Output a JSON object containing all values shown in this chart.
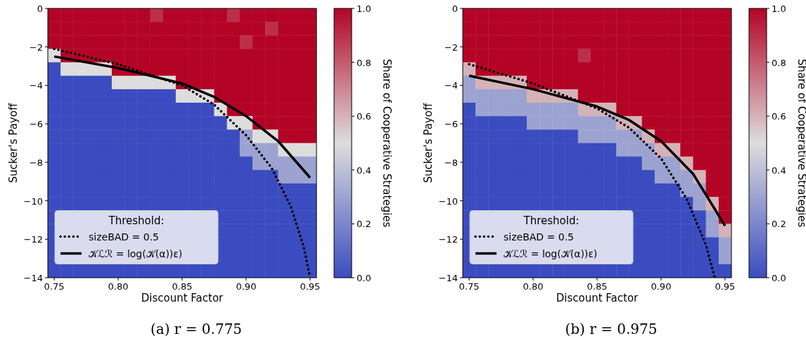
{
  "chart_data": [
    {
      "type": "heatmap",
      "title": "(a) r = 0.775",
      "xlabel": "Discount Factor",
      "ylabel": "Sucker's Payoff",
      "clabel": "Share of Cooperative Strategies",
      "legend_title": "Threshold:",
      "legend": "bottom left",
      "grid": false,
      "xlim": [
        0.745,
        0.955
      ],
      "ylim": [
        -14,
        0
      ],
      "xticks": [
        {
          "value": 0.75,
          "label": "0.75"
        },
        {
          "value": 0.8,
          "label": "0.80"
        },
        {
          "value": 0.85,
          "label": "0.85"
        },
        {
          "value": 0.9,
          "label": "0.90"
        },
        {
          "value": 0.95,
          "label": "0.95"
        }
      ],
      "yticks": [
        {
          "value": -14,
          "label": "−14"
        },
        {
          "value": -12,
          "label": "−12"
        },
        {
          "value": -10,
          "label": "−10"
        },
        {
          "value": -8,
          "label": "−8"
        },
        {
          "value": -6,
          "label": "−6"
        },
        {
          "value": -4,
          "label": "−4"
        },
        {
          "value": -2,
          "label": "−2"
        },
        0
      ],
      "clim": [
        0,
        1
      ],
      "cticks": [
        {
          "value": 0,
          "label": "0.0"
        },
        {
          "value": 0.2,
          "label": "0.2"
        },
        {
          "value": 0.4,
          "label": "0.4"
        },
        {
          "value": 0.6,
          "label": "0.6"
        },
        {
          "value": 0.8,
          "label": "0.8"
        },
        {
          "value": 1,
          "label": "1.0"
        }
      ],
      "cells": [
        [
          1,
          1,
          1,
          1,
          1,
          1,
          1,
          1,
          0.9,
          1,
          1,
          1,
          1,
          1,
          0.9,
          1,
          1,
          1,
          1,
          1,
          1
        ],
        [
          1,
          1,
          1,
          1,
          1,
          1,
          1,
          1,
          1,
          1,
          1,
          1,
          1,
          1,
          1,
          1,
          1,
          0.9,
          1,
          1,
          1
        ],
        [
          1,
          1,
          1,
          1,
          1,
          1,
          1,
          1,
          1,
          1,
          1,
          1,
          1,
          1,
          1,
          0.9,
          1,
          1,
          1,
          1,
          1
        ],
        [
          0.5,
          1,
          1,
          1,
          1,
          1,
          1,
          1,
          1,
          1,
          1,
          1,
          1,
          1,
          1,
          1,
          1,
          1,
          1,
          1,
          1
        ],
        [
          0,
          0.5,
          0.5,
          0.5,
          0.5,
          1,
          1,
          1,
          1,
          1,
          1,
          1,
          1,
          1,
          1,
          1,
          1,
          1,
          1,
          1,
          1
        ],
        [
          0,
          0,
          0,
          0,
          0,
          0.5,
          0.5,
          0.5,
          0.5,
          0.5,
          1,
          1,
          1,
          1,
          1,
          1,
          1,
          1,
          1,
          1,
          1
        ],
        [
          0,
          0,
          0,
          0,
          0,
          0,
          0,
          0,
          0,
          0,
          0.5,
          0.5,
          0.5,
          1,
          1,
          1,
          1,
          1,
          1,
          1,
          1
        ],
        [
          0,
          0,
          0,
          0,
          0,
          0,
          0,
          0,
          0,
          0,
          0,
          0,
          0,
          0.5,
          1,
          1,
          1,
          1,
          1,
          1,
          1
        ],
        [
          0,
          0,
          0,
          0,
          0,
          0,
          0,
          0,
          0,
          0,
          0,
          0,
          0,
          0,
          0.5,
          0.5,
          1,
          1,
          1,
          1,
          1
        ],
        [
          0,
          0,
          0,
          0,
          0,
          0,
          0,
          0,
          0,
          0,
          0,
          0,
          0,
          0,
          0,
          0.3,
          0.5,
          0.5,
          1,
          1,
          1
        ],
        [
          0,
          0,
          0,
          0,
          0,
          0,
          0,
          0,
          0,
          0,
          0,
          0,
          0,
          0,
          0,
          0.3,
          0.3,
          0.3,
          0.5,
          0.5,
          0.5
        ],
        [
          0,
          0,
          0,
          0,
          0,
          0,
          0,
          0,
          0,
          0,
          0,
          0,
          0,
          0,
          0,
          0,
          0.3,
          0.3,
          0.3,
          0.3,
          0.3
        ],
        [
          0,
          0,
          0,
          0,
          0,
          0,
          0,
          0,
          0,
          0,
          0,
          0,
          0,
          0,
          0,
          0,
          0,
          0,
          0.3,
          0.3,
          0.3
        ],
        [
          0,
          0,
          0,
          0,
          0,
          0,
          0,
          0,
          0,
          0,
          0,
          0,
          0,
          0,
          0,
          0,
          0,
          0,
          0,
          0,
          0
        ],
        [
          0,
          0,
          0,
          0,
          0,
          0,
          0,
          0,
          0,
          0,
          0,
          0,
          0,
          0,
          0,
          0,
          0,
          0,
          0,
          0,
          0
        ],
        [
          0,
          null,
          null,
          null,
          null,
          null,
          null,
          null,
          null,
          null,
          null,
          null,
          null,
          0,
          0,
          0,
          0,
          0,
          0,
          0,
          0
        ],
        [
          0,
          null,
          null,
          null,
          null,
          null,
          null,
          null,
          null,
          null,
          null,
          null,
          null,
          0,
          0,
          0,
          0,
          0,
          0,
          0,
          0
        ],
        [
          0,
          null,
          null,
          null,
          null,
          null,
          null,
          null,
          null,
          null,
          null,
          null,
          null,
          0,
          0,
          0,
          0,
          0,
          0,
          0,
          0
        ],
        [
          0,
          null,
          null,
          null,
          null,
          null,
          null,
          null,
          null,
          null,
          null,
          null,
          null,
          0,
          0,
          0,
          0,
          0,
          0,
          0,
          0
        ],
        [
          0,
          0,
          0,
          0,
          0,
          0,
          0,
          0,
          0,
          0,
          0,
          0,
          0,
          0,
          0,
          0,
          0,
          0,
          0,
          0,
          0
        ]
      ],
      "series": [
        {
          "type": "line",
          "name": "sizeBAD = 0.5",
          "color": "#000000",
          "line_style": "dotted",
          "x": [
            0.75,
            0.8,
            0.85,
            0.875,
            0.9,
            0.92,
            0.935,
            0.945,
            0.95
          ],
          "values": [
            -2.1,
            -2.9,
            -4.0,
            -5.0,
            -6.6,
            -8.3,
            -10.3,
            -12.4,
            -14
          ]
        },
        {
          "type": "line",
          "name": "𝒦ℒℛ = log(𝒦(α))ε)",
          "color": "#000000",
          "line_style": "solid",
          "x": [
            0.75,
            0.8,
            0.85,
            0.875,
            0.9,
            0.925,
            0.95
          ],
          "values": [
            -2.5,
            -3.1,
            -3.9,
            -4.6,
            -5.6,
            -6.9,
            -8.8
          ]
        }
      ]
    },
    {
      "type": "heatmap",
      "title": "(b) r = 0.975",
      "xlabel": "Discount Factor",
      "ylabel": "Sucker's Payoff",
      "clabel": "Share of Cooperative Strategies",
      "legend_title": "Threshold:",
      "legend": "bottom left",
      "grid": false,
      "xlim": [
        0.745,
        0.955
      ],
      "ylim": [
        -14,
        0
      ],
      "xticks": [
        {
          "value": 0.75,
          "label": "0.75"
        },
        {
          "value": 0.8,
          "label": "0.80"
        },
        {
          "value": 0.85,
          "label": "0.85"
        },
        {
          "value": 0.9,
          "label": "0.90"
        },
        {
          "value": 0.95,
          "label": "0.95"
        }
      ],
      "yticks": [
        {
          "value": -14,
          "label": "−14"
        },
        {
          "value": -12,
          "label": "−12"
        },
        {
          "value": -10,
          "label": "−10"
        },
        {
          "value": -8,
          "label": "−8"
        },
        {
          "value": -6,
          "label": "−6"
        },
        {
          "value": -4,
          "label": "−4"
        },
        {
          "value": -2,
          "label": "−2"
        },
        0
      ],
      "clim": [
        0,
        1
      ],
      "cticks": [
        {
          "value": 0,
          "label": "0.0"
        },
        {
          "value": 0.2,
          "label": "0.2"
        },
        {
          "value": 0.4,
          "label": "0.4"
        },
        {
          "value": 0.6,
          "label": "0.6"
        },
        {
          "value": 0.8,
          "label": "0.8"
        },
        {
          "value": 1,
          "label": "1.0"
        }
      ],
      "cells": [
        [
          1,
          1,
          1,
          1,
          1,
          1,
          1,
          1,
          1,
          1,
          1,
          1,
          1,
          1,
          1,
          1,
          1,
          1,
          1,
          1,
          1
        ],
        [
          1,
          1,
          1,
          1,
          1,
          1,
          1,
          1,
          1,
          1,
          1,
          1,
          1,
          1,
          1,
          1,
          1,
          1,
          1,
          1,
          1
        ],
        [
          1,
          1,
          1,
          1,
          1,
          1,
          1,
          1,
          1,
          1,
          1,
          1,
          1,
          1,
          1,
          1,
          1,
          1,
          1,
          1,
          1
        ],
        [
          1,
          1,
          1,
          1,
          1,
          1,
          1,
          1,
          1,
          0.9,
          1,
          1,
          1,
          1,
          1,
          1,
          1,
          1,
          1,
          1,
          1
        ],
        [
          0.6,
          1,
          1,
          1,
          1,
          1,
          1,
          1,
          1,
          1,
          1,
          1,
          1,
          1,
          1,
          1,
          1,
          1,
          1,
          1,
          1
        ],
        [
          0.3,
          0.6,
          0.6,
          0.6,
          0.6,
          1,
          1,
          1,
          1,
          1,
          1,
          1,
          1,
          1,
          1,
          1,
          1,
          1,
          1,
          1,
          1
        ],
        [
          0.3,
          0.3,
          0.3,
          0.3,
          0.3,
          0.6,
          0.6,
          0.6,
          0.6,
          1,
          1,
          1,
          1,
          1,
          1,
          1,
          1,
          1,
          1,
          1,
          1
        ],
        [
          0,
          0.3,
          0.3,
          0.3,
          0.3,
          0.3,
          0.3,
          0.3,
          0.3,
          0.6,
          0.6,
          0.6,
          1,
          1,
          1,
          1,
          1,
          1,
          1,
          1,
          1
        ],
        [
          0,
          0,
          0,
          0,
          0,
          0.3,
          0.3,
          0.3,
          0.3,
          0.3,
          0.3,
          0.3,
          0.6,
          0.6,
          1,
          1,
          1,
          1,
          1,
          1,
          1
        ],
        [
          0,
          0,
          0,
          0,
          0,
          0,
          0,
          0,
          0,
          0.3,
          0.3,
          0.3,
          0.3,
          0.3,
          0.6,
          1,
          1,
          1,
          1,
          1,
          1
        ],
        [
          0,
          0,
          0,
          0,
          0,
          0,
          0,
          0,
          0,
          0,
          0,
          0,
          0.3,
          0.3,
          0.3,
          0.6,
          0.6,
          1,
          1,
          1,
          1
        ],
        [
          0,
          0,
          0,
          0,
          0,
          0,
          0,
          0,
          0,
          0,
          0,
          0,
          0,
          0,
          0.3,
          0.3,
          0.3,
          0.6,
          1,
          1,
          1
        ],
        [
          0,
          0,
          0,
          0,
          0,
          0,
          0,
          0,
          0,
          0,
          0,
          0,
          0,
          0,
          0,
          0.3,
          0.3,
          0.3,
          0.6,
          1,
          1
        ],
        [
          0,
          0,
          0,
          0,
          0,
          0,
          0,
          0,
          0,
          0,
          0,
          0,
          0,
          0,
          0,
          0,
          0,
          0.3,
          0.3,
          1,
          1
        ],
        [
          0,
          0,
          0,
          0,
          0,
          0,
          0,
          0,
          0,
          0,
          0,
          0,
          0,
          0,
          0,
          0,
          0,
          0,
          0.3,
          0.6,
          1
        ],
        [
          0,
          null,
          null,
          null,
          null,
          null,
          null,
          null,
          null,
          null,
          null,
          null,
          null,
          0,
          0,
          0,
          0,
          0,
          0,
          0.3,
          1
        ],
        [
          0,
          null,
          null,
          null,
          null,
          null,
          null,
          null,
          null,
          null,
          null,
          null,
          null,
          0,
          0,
          0,
          0,
          0,
          0,
          0.3,
          0.6
        ],
        [
          0,
          null,
          null,
          null,
          null,
          null,
          null,
          null,
          null,
          null,
          null,
          null,
          null,
          0,
          0,
          0,
          0,
          0,
          0,
          0,
          0.3
        ],
        [
          0,
          null,
          null,
          null,
          null,
          null,
          null,
          null,
          null,
          null,
          null,
          null,
          null,
          0,
          0,
          0,
          0,
          0,
          0,
          0,
          0.3
        ],
        [
          0,
          0,
          0,
          0,
          0,
          0,
          0,
          0,
          0,
          0,
          0,
          0,
          0,
          0,
          0,
          0,
          0,
          0,
          0,
          0,
          0
        ]
      ],
      "series": [
        {
          "type": "line",
          "name": "sizeBAD = 0.5",
          "color": "#000000",
          "line_style": "dotted",
          "x": [
            0.75,
            0.8,
            0.85,
            0.875,
            0.9,
            0.92,
            0.935,
            0.942
          ],
          "values": [
            -2.9,
            -3.9,
            -5.2,
            -6.2,
            -7.8,
            -9.9,
            -12.3,
            -14
          ]
        },
        {
          "type": "line",
          "name": "𝒦ℒℛ = log(𝒦(α))ε)",
          "color": "#000000",
          "line_style": "solid",
          "x": [
            0.75,
            0.8,
            0.85,
            0.875,
            0.9,
            0.925,
            0.95
          ],
          "values": [
            -3.5,
            -4.2,
            -5.1,
            -5.8,
            -6.9,
            -8.6,
            -11.3
          ]
        }
      ]
    }
  ]
}
